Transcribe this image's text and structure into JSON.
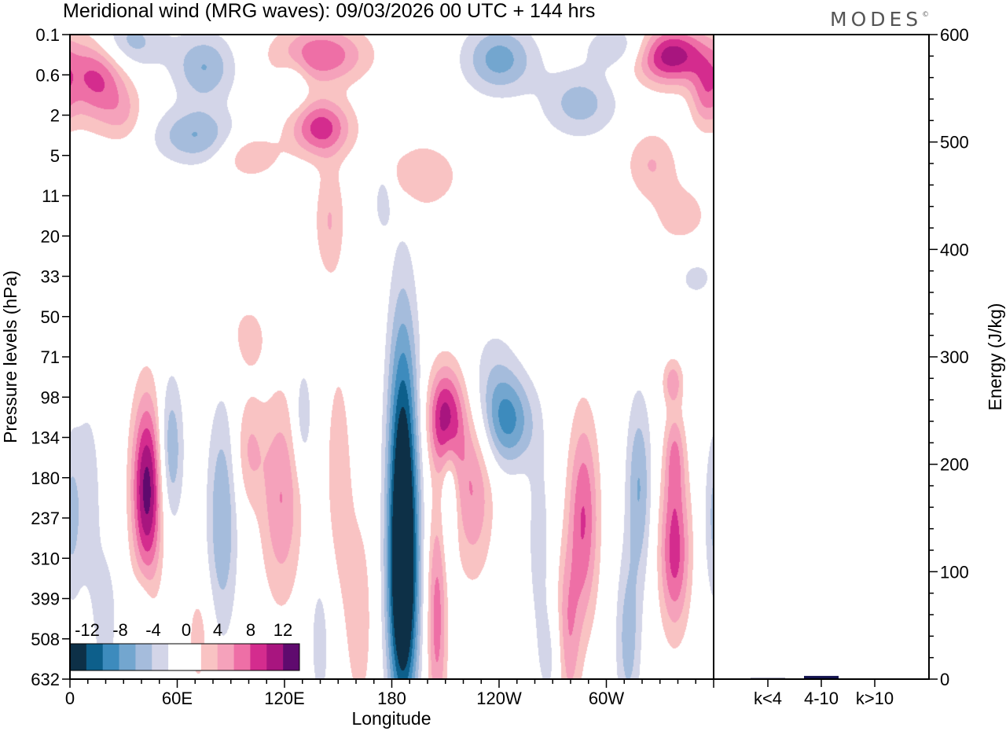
{
  "chart_data": {
    "type": "heatmap",
    "title": "Meridional wind (MRG waves):  09/03/2026  00 UTC  + 144 hrs",
    "brand": "MODES",
    "brand_mark": "©",
    "xlabel": "Longitude",
    "ylabel": "Pressure levels (hPa)",
    "y2label": "Energy (J/kg)",
    "x_ticks": [
      "0",
      "60E",
      "120E",
      "180",
      "120W",
      "60W"
    ],
    "x_tick_values": [
      0,
      60,
      120,
      180,
      240,
      300
    ],
    "xlim": [
      0,
      360
    ],
    "y_levels": [
      "0.1",
      "0.6",
      "2",
      "5",
      "11",
      "20",
      "33",
      "50",
      "71",
      "98",
      "134",
      "180",
      "237",
      "310",
      "399",
      "508",
      "632"
    ],
    "energy_ticks": [
      0,
      100,
      200,
      300,
      400,
      500,
      600
    ],
    "energy_ylim": [
      0,
      600
    ],
    "energy_categories": [
      "k<4",
      "4-10",
      "k>10"
    ],
    "energy_values": [
      1.0,
      3.0,
      0.5
    ],
    "energy_bar_color": "#141450",
    "colorbar_labels": [
      "-12",
      "-8",
      "-4",
      "0",
      "4",
      "8",
      "12"
    ],
    "colorbar_colors": [
      "#0d3047",
      "#0d5f8b",
      "#3d8bbd",
      "#73a6cf",
      "#a5bcdc",
      "#d3d5e8",
      "#ffffff",
      "#ffffff",
      "#f9c3c3",
      "#f5a2bb",
      "#ee6fa6",
      "#d42c8e",
      "#a8157f",
      "#5f0a6e"
    ],
    "contour_levels": [
      -12,
      -10,
      -8,
      -6,
      -4,
      -2,
      0,
      2,
      4,
      6,
      8,
      10,
      12
    ],
    "features": [
      {
        "lon": 186,
        "lev": 11.5,
        "amp": -15,
        "sx": 6,
        "sy": 3.2
      },
      {
        "lon": 186,
        "lev": 14.2,
        "amp": -8,
        "sx": 6,
        "sy": 2.0
      },
      {
        "lon": 43,
        "lev": 11.3,
        "amp": 13,
        "sx": 6,
        "sy": 1.6
      },
      {
        "lon": 56,
        "lev": 10.3,
        "amp": -6,
        "sx": 5,
        "sy": 1.3
      },
      {
        "lon": 85,
        "lev": 12.0,
        "amp": -6,
        "sx": 6,
        "sy": 2.0
      },
      {
        "lon": 118,
        "lev": 11.5,
        "amp": 6,
        "sx": 8,
        "sy": 1.8
      },
      {
        "lon": 100,
        "lev": 10.3,
        "amp": 4,
        "sx": 6,
        "sy": 1.0
      },
      {
        "lon": 130,
        "lev": 9.5,
        "amp": -4,
        "sx": 4,
        "sy": 1.0
      },
      {
        "lon": 150,
        "lev": 11.0,
        "amp": 3,
        "sx": 6,
        "sy": 2.5
      },
      {
        "lon": 140,
        "lev": 15.0,
        "amp": -3,
        "sx": 5,
        "sy": 1.5
      },
      {
        "lon": 162,
        "lev": 14.5,
        "amp": 3,
        "sx": 6,
        "sy": 2.0
      },
      {
        "lon": 210,
        "lev": 9.5,
        "amp": 11,
        "sx": 7,
        "sy": 0.9
      },
      {
        "lon": 225,
        "lev": 11.3,
        "amp": 6,
        "sx": 8,
        "sy": 1.5
      },
      {
        "lon": 205,
        "lev": 14.5,
        "amp": 7,
        "sx": 4,
        "sy": 2.0
      },
      {
        "lon": 212,
        "lev": 11.5,
        "amp": -4,
        "sx": 3,
        "sy": 1.2
      },
      {
        "lon": 245,
        "lev": 9.6,
        "amp": -8,
        "sx": 10,
        "sy": 0.8
      },
      {
        "lon": 236,
        "lev": 8.5,
        "amp": -3,
        "sx": 10,
        "sy": 1.0
      },
      {
        "lon": 262,
        "lev": 12.5,
        "amp": -3,
        "sx": 5,
        "sy": 1.8
      },
      {
        "lon": 270,
        "lev": 15.5,
        "amp": -3,
        "sx": 6,
        "sy": 1.0
      },
      {
        "lon": 287,
        "lev": 12.0,
        "amp": 8,
        "sx": 6,
        "sy": 1.8
      },
      {
        "lon": 278,
        "lev": 15.0,
        "amp": 6,
        "sx": 5,
        "sy": 1.5
      },
      {
        "lon": 318,
        "lev": 11.2,
        "amp": -6,
        "sx": 5,
        "sy": 1.6
      },
      {
        "lon": 312,
        "lev": 15.0,
        "amp": -5,
        "sx": 5,
        "sy": 1.5
      },
      {
        "lon": 338,
        "lev": 12.8,
        "amp": 9,
        "sx": 6,
        "sy": 1.4
      },
      {
        "lon": 338,
        "lev": 10.4,
        "amp": 5,
        "sx": 4,
        "sy": 0.8
      },
      {
        "lon": 337,
        "lev": 8.6,
        "amp": 5,
        "sx": 4,
        "sy": 0.4
      },
      {
        "lon": 360,
        "lev": 12.0,
        "amp": -4,
        "sx": 4,
        "sy": 1.5
      },
      {
        "lon": 20,
        "lev": 14.5,
        "amp": -3,
        "sx": 5,
        "sy": 1.2
      },
      {
        "lon": 10,
        "lev": 11.5,
        "amp": -3,
        "sx": 6,
        "sy": 2.0
      },
      {
        "lon": 40,
        "lev": 14.5,
        "amp": -3,
        "sx": 4,
        "sy": 0.8
      },
      {
        "lon": 72,
        "lev": 15.0,
        "amp": 3,
        "sx": 5,
        "sy": 1.0
      },
      {
        "lon": 100,
        "lev": 7.5,
        "amp": 3,
        "sx": 7,
        "sy": 0.6
      },
      {
        "lon": 350,
        "lev": 6.0,
        "amp": -2.5,
        "sx": 10,
        "sy": 0.5
      },
      {
        "lon": 15,
        "lev": 1.0,
        "amp": 9,
        "sx": 12,
        "sy": 0.8
      },
      {
        "lon": 30,
        "lev": 0.2,
        "amp": -6,
        "sx": 15,
        "sy": 0.5
      },
      {
        "lon": 75,
        "lev": 0.8,
        "amp": -6,
        "sx": 12,
        "sy": 0.6
      },
      {
        "lon": 140,
        "lev": 0.5,
        "amp": 8,
        "sx": 18,
        "sy": 0.5
      },
      {
        "lon": 125,
        "lev": 1.2,
        "amp": -3,
        "sx": 6,
        "sy": 0.5
      },
      {
        "lon": 240,
        "lev": 0.6,
        "amp": -7,
        "sx": 14,
        "sy": 0.6
      },
      {
        "lon": 310,
        "lev": 0.3,
        "amp": -5,
        "sx": 14,
        "sy": 0.4
      },
      {
        "lon": 335,
        "lev": 0.5,
        "amp": 12,
        "sx": 15,
        "sy": 0.5
      },
      {
        "lon": 355,
        "lev": 1.5,
        "amp": 5,
        "sx": 6,
        "sy": 0.6
      },
      {
        "lon": 70,
        "lev": 2.5,
        "amp": -6,
        "sx": 16,
        "sy": 0.5
      },
      {
        "lon": 140,
        "lev": 2.3,
        "amp": 9,
        "sx": 12,
        "sy": 0.5
      },
      {
        "lon": 100,
        "lev": 3.0,
        "amp": 4,
        "sx": 12,
        "sy": 0.4
      },
      {
        "lon": 195,
        "lev": 3.5,
        "amp": 4,
        "sx": 16,
        "sy": 0.6
      },
      {
        "lon": 285,
        "lev": 1.7,
        "amp": -5,
        "sx": 15,
        "sy": 0.6
      },
      {
        "lon": 325,
        "lev": 3.2,
        "amp": 4,
        "sx": 10,
        "sy": 0.6
      },
      {
        "lon": 30,
        "lev": 2.0,
        "amp": 3,
        "sx": 8,
        "sy": 0.5
      },
      {
        "lon": 145,
        "lev": 4.6,
        "amp": 4,
        "sx": 6,
        "sy": 1.0
      },
      {
        "lon": 175,
        "lev": 4.0,
        "amp": -4,
        "sx": 4,
        "sy": 0.6
      },
      {
        "lon": 342,
        "lev": 4.5,
        "amp": 3,
        "sx": 12,
        "sy": 0.6
      },
      {
        "lon": 90,
        "lev": 7.0,
        "amp": 0.3,
        "sx": 4,
        "sy": 0.4
      },
      {
        "lon": 325,
        "lev": 6.0,
        "amp": 0.3,
        "sx": 4,
        "sy": 0.4
      }
    ]
  }
}
